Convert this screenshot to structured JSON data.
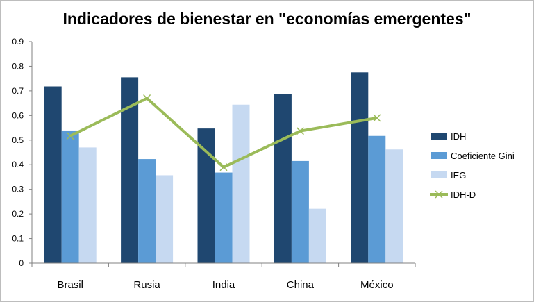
{
  "chart_data": {
    "type": "bar",
    "title": "Indicadores de bienestar en \"economías emergentes\"",
    "xlabel": "",
    "ylabel": "",
    "ylim": [
      0,
      0.9
    ],
    "yticks": [
      "0",
      "0.1",
      "0.2",
      "0.3",
      "0.4",
      "0.5",
      "0.6",
      "0.7",
      "0.8",
      "0.9"
    ],
    "categories": [
      "Brasil",
      "Rusia",
      "India",
      "China",
      "México"
    ],
    "series": [
      {
        "name": "IDH",
        "type": "bar",
        "color": "#1f4770",
        "values": [
          0.718,
          0.755,
          0.547,
          0.687,
          0.775
        ]
      },
      {
        "name": "Coeficiente Gini",
        "type": "bar",
        "color": "#5b9bd5",
        "values": [
          0.539,
          0.423,
          0.368,
          0.415,
          0.517
        ]
      },
      {
        "name": "IEG",
        "type": "bar",
        "color": "#c6d9f1",
        "values": [
          0.47,
          0.357,
          0.644,
          0.221,
          0.462
        ]
      },
      {
        "name": "IDH-D",
        "type": "line",
        "color": "#9bbb59",
        "marker": "x",
        "values": [
          0.517,
          0.67,
          0.39,
          0.537,
          0.59
        ]
      }
    ],
    "grid": false,
    "legend": "right"
  }
}
